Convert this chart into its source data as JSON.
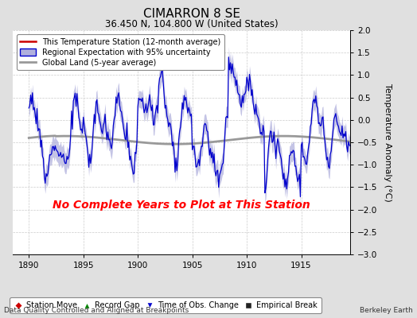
{
  "title": "CIMARRON 8 SE",
  "subtitle": "36.450 N, 104.800 W (United States)",
  "footer_left": "Data Quality Controlled and Aligned at Breakpoints",
  "footer_right": "Berkeley Earth",
  "no_data_text": "No Complete Years to Plot at This Station",
  "ylabel": "Temperature Anomaly (°C)",
  "xlim": [
    1888.5,
    1919.5
  ],
  "ylim": [
    -3.0,
    2.0
  ],
  "xticks": [
    1890,
    1895,
    1900,
    1905,
    1910,
    1915
  ],
  "yticks": [
    -3.0,
    -2.5,
    -2.0,
    -1.5,
    -1.0,
    -0.5,
    0.0,
    0.5,
    1.0,
    1.5,
    2.0
  ],
  "bg_color": "#e0e0e0",
  "plot_bg_color": "#ffffff",
  "regional_line_color": "#0000cc",
  "regional_fill_color": "#b0b0dd",
  "station_line_color": "#cc0000",
  "global_line_color": "#999999",
  "no_data_color": "#ff0000",
  "seed": 12,
  "n_years": 30,
  "x_start": 1890.0,
  "x_end": 1920.0
}
